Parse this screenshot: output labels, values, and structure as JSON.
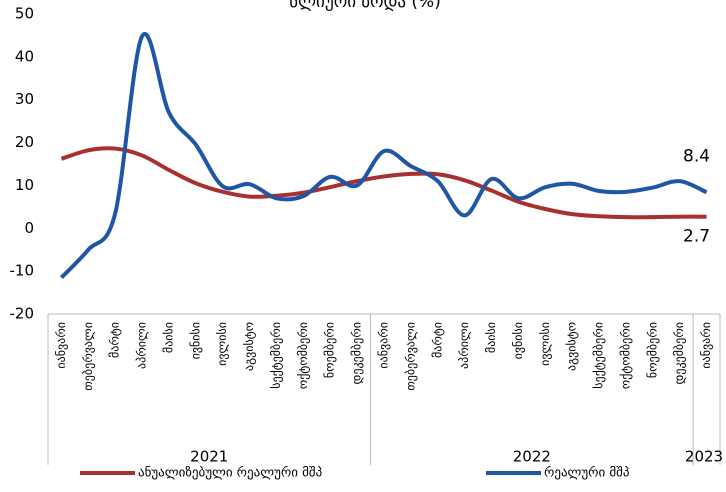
{
  "chart_data": {
    "type": "line",
    "title": "წლიური ზრდა (%)",
    "categories": [
      "იანვარი",
      "თებერვალი",
      "მარტი",
      "აპრილი",
      "მაისი",
      "ივნისი",
      "ივლისი",
      "აგვისტო",
      "სექტემბერი",
      "ოქტომბერი",
      "ნოემბერი",
      "დეკემბერი",
      "იანვარი",
      "თებერვალი",
      "მარტი",
      "აპრილი",
      "მაისი",
      "ივნისი",
      "ივლისი",
      "აგვისტო",
      "სექტემბერი",
      "ოქტომბერი",
      "ნოემბერი",
      "დეკემბერი",
      "იანვარი"
    ],
    "groups": [
      {
        "label": "2021",
        "size": 12
      },
      {
        "label": "2022",
        "size": 12
      },
      {
        "label": "2023",
        "size": 1
      }
    ],
    "series": [
      {
        "name": "ანუალიზებული რეალური მშპ",
        "color": "#a8312f",
        "values": [
          16.2,
          18.2,
          18.6,
          17,
          13.6,
          10.5,
          8.5,
          7.4,
          7.6,
          8.3,
          9.6,
          11,
          12.1,
          12.7,
          12.6,
          11.2,
          8.8,
          6.2,
          4.5,
          3.3,
          2.8,
          2.6,
          2.6,
          2.7,
          2.7
        ],
        "value_labels": [
          null,
          null,
          null,
          null,
          null,
          null,
          null,
          null,
          null,
          null,
          null,
          null,
          null,
          null,
          null,
          null,
          null,
          null,
          null,
          null,
          null,
          null,
          null,
          null,
          "2.7"
        ]
      },
      {
        "name": "რეალური მშპ",
        "color": "#1f56a5",
        "values": [
          -11.5,
          -5,
          3.5,
          44.8,
          27,
          19.5,
          9.8,
          10.3,
          7,
          7.5,
          12,
          10,
          18,
          14.5,
          11,
          3,
          11.5,
          7,
          9.6,
          10.4,
          8.7,
          8.5,
          9.5,
          11,
          8.4
        ],
        "value_labels": [
          null,
          null,
          null,
          null,
          null,
          null,
          null,
          null,
          null,
          null,
          null,
          null,
          null,
          null,
          null,
          null,
          null,
          null,
          null,
          null,
          null,
          null,
          null,
          null,
          "8.4"
        ]
      }
    ],
    "ylim": [
      -20,
      50
    ],
    "yticks": [
      -20,
      -10,
      0,
      10,
      20,
      30,
      40,
      50
    ],
    "grid": false,
    "legend": "bottom"
  }
}
